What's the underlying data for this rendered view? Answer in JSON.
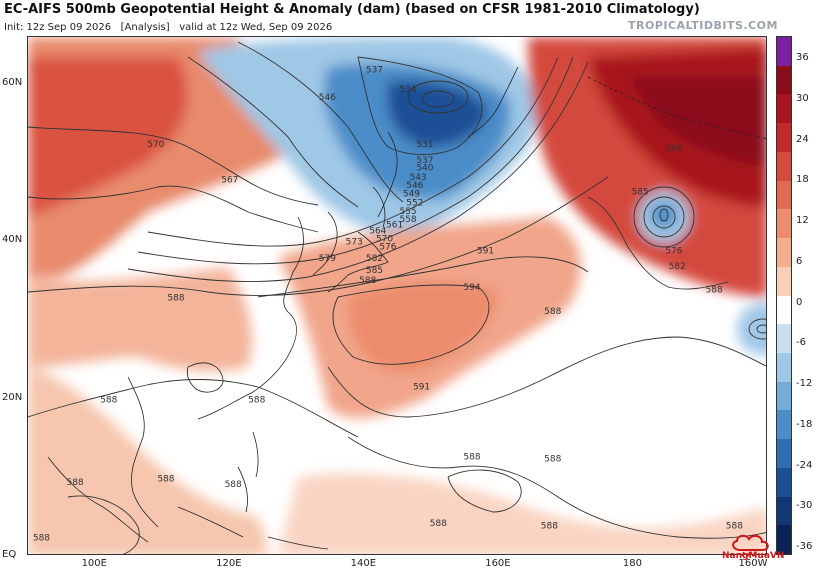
{
  "header": {
    "title": "EC-AIFS 500mb Geopotential Height & Anomaly (dam) (based on CFSR 1981-2010 Climatology)",
    "init": "Init: 12z Sep 09 2026",
    "analysis": "[Analysis]",
    "valid": "valid at 12z Wed, Sep 09 2026",
    "brand": "TROPICALTIDBITS.COM"
  },
  "axes": {
    "latitudes": [
      {
        "label": "60N",
        "value": 60
      },
      {
        "label": "40N",
        "value": 40
      },
      {
        "label": "20N",
        "value": 20
      },
      {
        "label": "EQ",
        "value": 0
      }
    ],
    "longitudes": [
      {
        "label": "100E",
        "value": 100
      },
      {
        "label": "120E",
        "value": 120
      },
      {
        "label": "140E",
        "value": 140
      },
      {
        "label": "160E",
        "value": 160
      },
      {
        "label": "180",
        "value": 180
      },
      {
        "label": "160W",
        "value": 200
      }
    ],
    "lon_range": [
      90,
      200
    ],
    "lat_range": [
      0,
      66
    ]
  },
  "colorbar": {
    "labels": [
      "36",
      "30",
      "24",
      "18",
      "12",
      "6",
      "0",
      "-6",
      "-12",
      "-18",
      "-24",
      "-30",
      "-36"
    ],
    "colors": [
      "#7a1fa0",
      "#8b0b1a",
      "#a8141f",
      "#c22a2a",
      "#d44a3e",
      "#e26a52",
      "#ec8c6c",
      "#f3ae90",
      "#f8cfb8",
      "#ffffff",
      "#c9dff0",
      "#9fc7e6",
      "#74abd8",
      "#4b8dc9",
      "#2e6fb3",
      "#1b4f95",
      "#123775",
      "#0b2356"
    ]
  },
  "contour_labels": [
    {
      "text": "537",
      "lon": 141.5,
      "lat": 61.5
    },
    {
      "text": "534",
      "lon": 146.5,
      "lat": 59
    },
    {
      "text": "546",
      "lon": 134.5,
      "lat": 58
    },
    {
      "text": "531",
      "lon": 149,
      "lat": 52
    },
    {
      "text": "537",
      "lon": 149,
      "lat": 50
    },
    {
      "text": "540",
      "lon": 149,
      "lat": 49
    },
    {
      "text": "543",
      "lon": 148,
      "lat": 47.8
    },
    {
      "text": "546",
      "lon": 147.5,
      "lat": 46.8
    },
    {
      "text": "549",
      "lon": 147,
      "lat": 45.7
    },
    {
      "text": "552",
      "lon": 147.5,
      "lat": 44.6
    },
    {
      "text": "555",
      "lon": 146.5,
      "lat": 43.5
    },
    {
      "text": "558",
      "lon": 146.5,
      "lat": 42.5
    },
    {
      "text": "561",
      "lon": 144.5,
      "lat": 41.8
    },
    {
      "text": "564",
      "lon": 142,
      "lat": 41
    },
    {
      "text": "570",
      "lon": 143,
      "lat": 40
    },
    {
      "text": "573",
      "lon": 138.5,
      "lat": 39.6
    },
    {
      "text": "576",
      "lon": 143.5,
      "lat": 39
    },
    {
      "text": "579",
      "lon": 134.5,
      "lat": 37.5
    },
    {
      "text": "582",
      "lon": 141.5,
      "lat": 37.5
    },
    {
      "text": "585",
      "lon": 141.5,
      "lat": 36
    },
    {
      "text": "588",
      "lon": 140.5,
      "lat": 34.7
    },
    {
      "text": "591",
      "lon": 158,
      "lat": 38.5
    },
    {
      "text": "594",
      "lon": 156,
      "lat": 33.8
    },
    {
      "text": "570",
      "lon": 109,
      "lat": 52
    },
    {
      "text": "567",
      "lon": 120,
      "lat": 47.5
    },
    {
      "text": "588",
      "lon": 112,
      "lat": 32.5
    },
    {
      "text": "585",
      "lon": 181,
      "lat": 46
    },
    {
      "text": "588",
      "lon": 186,
      "lat": 51.5
    },
    {
      "text": "576",
      "lon": 186,
      "lat": 38.5
    },
    {
      "text": "582",
      "lon": 186.5,
      "lat": 36.5
    },
    {
      "text": "588",
      "lon": 192,
      "lat": 33.5
    },
    {
      "text": "588",
      "lon": 168,
      "lat": 30.8
    },
    {
      "text": "591",
      "lon": 148.5,
      "lat": 21.2
    },
    {
      "text": "588",
      "lon": 124,
      "lat": 19.5
    },
    {
      "text": "588",
      "lon": 102,
      "lat": 19.5
    },
    {
      "text": "588",
      "lon": 156,
      "lat": 12.3
    },
    {
      "text": "588",
      "lon": 168,
      "lat": 12
    },
    {
      "text": "588",
      "lon": 110.5,
      "lat": 9.5
    },
    {
      "text": "588",
      "lon": 120.5,
      "lat": 8.8
    },
    {
      "text": "588",
      "lon": 97,
      "lat": 9
    },
    {
      "text": "588",
      "lon": 151,
      "lat": 3.8
    },
    {
      "text": "588",
      "lon": 167.5,
      "lat": 3.5
    },
    {
      "text": "588",
      "lon": 195,
      "lat": 3.5
    },
    {
      "text": "588",
      "lon": 92,
      "lat": 2
    }
  ],
  "centers": [
    {
      "name": "low-kamchatka",
      "lon": 148.5,
      "lat": 55.5
    },
    {
      "name": "low-central-pacific",
      "lon": 186.5,
      "lat": 42
    },
    {
      "name": "low-east-pacific",
      "lon": 198.5,
      "lat": 28.5
    }
  ],
  "watermark": {
    "text": "NangMuaVN"
  }
}
